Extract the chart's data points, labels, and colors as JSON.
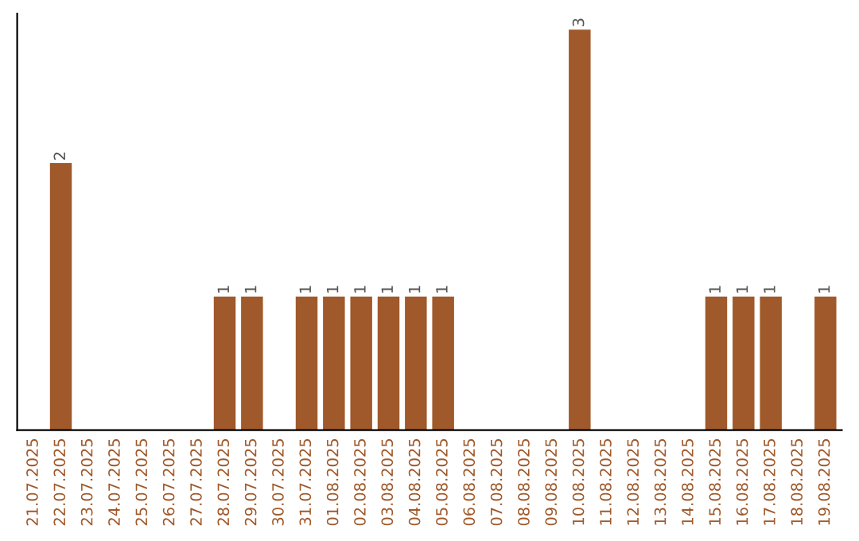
{
  "chart_data": {
    "type": "bar",
    "categories": [
      "21.07.2025",
      "22.07.2025",
      "23.07.2025",
      "24.07.2025",
      "25.07.2025",
      "26.07.2025",
      "27.07.2025",
      "28.07.2025",
      "29.07.2025",
      "30.07.2025",
      "31.07.2025",
      "01.08.2025",
      "02.08.2025",
      "03.08.2025",
      "04.08.2025",
      "05.08.2025",
      "06.08.2025",
      "07.08.2025",
      "08.08.2025",
      "09.08.2025",
      "10.08.2025",
      "11.08.2025",
      "12.08.2025",
      "13.08.2025",
      "14.08.2025",
      "15.08.2025",
      "16.08.2025",
      "17.08.2025",
      "18.08.2025",
      "19.08.2025"
    ],
    "values": [
      0,
      2,
      0,
      0,
      0,
      0,
      0,
      1,
      1,
      0,
      1,
      1,
      1,
      1,
      1,
      1,
      0,
      0,
      0,
      0,
      3,
      0,
      0,
      0,
      0,
      1,
      1,
      1,
      0,
      1
    ],
    "value_labels": [
      null,
      "2",
      null,
      null,
      null,
      null,
      null,
      "1",
      "1",
      null,
      "1",
      "1",
      "1",
      "1",
      "1",
      "1",
      null,
      null,
      null,
      null,
      "3",
      null,
      null,
      null,
      null,
      "1",
      "1",
      "1",
      null,
      "1"
    ],
    "color": "#a0592a",
    "tick_labels": "x",
    "grid": false,
    "legend": false
  }
}
